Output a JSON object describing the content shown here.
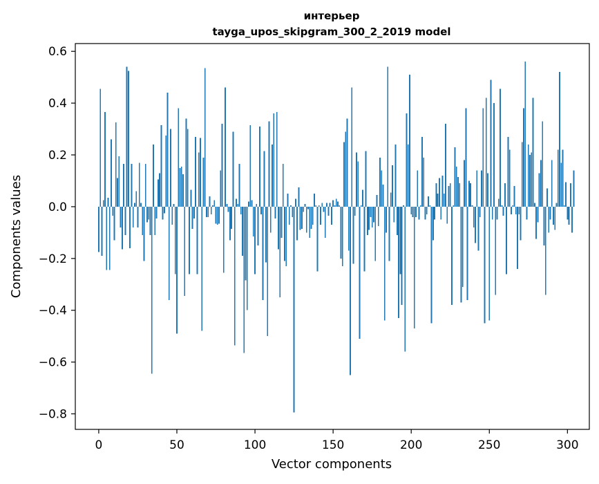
{
  "chart_data": {
    "type": "bar",
    "title_line1": "интерьер",
    "title_line2": "tayga_upos_skipgram_300_2_2019 model",
    "xlabel": "Vector components",
    "ylabel": "Components values",
    "xlim": [
      -15,
      314
    ],
    "ylim": [
      -0.86,
      0.63
    ],
    "xticks": [
      0,
      50,
      100,
      150,
      200,
      250,
      300
    ],
    "xtick_labels": [
      "0",
      "50",
      "100",
      "150",
      "200",
      "250",
      "300"
    ],
    "yticks": [
      -0.8,
      -0.6,
      -0.4,
      -0.2,
      0.0,
      0.2,
      0.4,
      0.6
    ],
    "ytick_labels": [
      "−0.8",
      "−0.6",
      "−0.4",
      "−0.2",
      "0.0",
      "0.2",
      "0.4",
      "0.6"
    ],
    "grid": false,
    "bar_color": "#1f77b4",
    "values": [
      -0.175,
      0.455,
      -0.19,
      0.025,
      0.365,
      -0.245,
      0.035,
      -0.245,
      0.26,
      -0.035,
      -0.13,
      0.325,
      0.11,
      0.195,
      -0.08,
      -0.165,
      0.165,
      -0.11,
      0.54,
      0.525,
      -0.16,
      0.165,
      -0.08,
      0.015,
      0.06,
      -0.08,
      0.17,
      0.015,
      -0.11,
      -0.21,
      0.165,
      -0.06,
      -0.05,
      -0.11,
      -0.645,
      0.24,
      -0.11,
      -0.045,
      0.105,
      0.13,
      0.315,
      -0.05,
      -0.025,
      0.275,
      0.44,
      -0.36,
      0.3,
      -0.07,
      0.01,
      -0.26,
      -0.49,
      0.38,
      0.15,
      0.155,
      0.125,
      -0.345,
      0.34,
      0.3,
      -0.26,
      0.065,
      -0.085,
      -0.045,
      0.27,
      -0.26,
      0.21,
      0.265,
      -0.48,
      0.19,
      0.535,
      -0.04,
      -0.04,
      0.04,
      -0.03,
      0.005,
      0.025,
      -0.065,
      -0.07,
      -0.065,
      0.14,
      0.32,
      -0.255,
      0.46,
      0.01,
      -0.02,
      -0.13,
      -0.085,
      0.29,
      -0.535,
      0.03,
      0.01,
      0.165,
      -0.03,
      -0.19,
      -0.565,
      -0.285,
      -0.4,
      0.02,
      0.315,
      0.025,
      -0.115,
      -0.26,
      0.01,
      -0.15,
      0.31,
      -0.03,
      -0.36,
      0.215,
      -0.215,
      -0.5,
      0.33,
      -0.1,
      0.24,
      0.36,
      -0.045,
      0.365,
      -0.165,
      -0.35,
      -0.12,
      0.165,
      -0.21,
      -0.23,
      0.05,
      -0.07,
      0.005,
      -0.04,
      -0.795,
      0.03,
      -0.13,
      0.075,
      -0.09,
      -0.085,
      -0.02,
      0.01,
      -0.1,
      -0.01,
      -0.12,
      -0.085,
      -0.07,
      0.05,
      0.005,
      -0.25,
      0.005,
      -0.07,
      0.015,
      -0.02,
      -0.12,
      0.015,
      -0.035,
      0.015,
      -0.07,
      0.025,
      0.005,
      0.03,
      0.02,
      0.005,
      -0.2,
      -0.23,
      0.25,
      0.29,
      0.34,
      -0.17,
      -0.65,
      0.46,
      -0.22,
      -0.035,
      0.21,
      0.175,
      -0.51,
      0.005,
      0.065,
      -0.25,
      0.215,
      -0.11,
      -0.09,
      -0.04,
      -0.08,
      -0.06,
      -0.21,
      0.045,
      -0.075,
      0.19,
      0.14,
      0.085,
      -0.44,
      -0.1,
      0.54,
      -0.21,
      0.055,
      0.16,
      -0.06,
      0.24,
      -0.11,
      -0.43,
      -0.26,
      -0.38,
      0.005,
      -0.56,
      0.36,
      0.24,
      0.51,
      -0.03,
      -0.04,
      -0.47,
      -0.04,
      0.14,
      -0.05,
      0.005,
      0.27,
      0.19,
      -0.05,
      -0.03,
      0.04,
      0.005,
      -0.45,
      -0.13,
      -0.05,
      0.09,
      0.05,
      0.11,
      -0.05,
      0.12,
      0.05,
      0.32,
      -0.065,
      0.08,
      0.09,
      -0.38,
      0.005,
      0.23,
      0.155,
      0.115,
      0.09,
      -0.37,
      -0.31,
      0.18,
      0.38,
      -0.36,
      0.1,
      0.09,
      0.005,
      -0.08,
      -0.14,
      0.14,
      -0.17,
      -0.04,
      0.14,
      0.38,
      -0.45,
      0.42,
      0.13,
      -0.44,
      0.49,
      -0.05,
      0.4,
      -0.34,
      -0.05,
      0.03,
      0.455,
      0.005,
      -0.035,
      0.09,
      -0.26,
      0.27,
      0.22,
      -0.03,
      0.005,
      0.08,
      -0.03,
      -0.24,
      -0.03,
      -0.13,
      0.25,
      0.38,
      0.56,
      -0.05,
      0.24,
      0.2,
      0.21,
      0.42,
      0.015,
      -0.125,
      -0.06,
      0.13,
      0.18,
      0.33,
      -0.15,
      -0.34,
      0.07,
      -0.1,
      -0.05,
      0.18,
      -0.07,
      -0.09,
      0.015,
      0.22,
      0.52,
      0.17,
      0.22,
      0.005,
      0.095,
      -0.05,
      -0.07,
      0.09,
      -0.1,
      0.14
    ]
  }
}
